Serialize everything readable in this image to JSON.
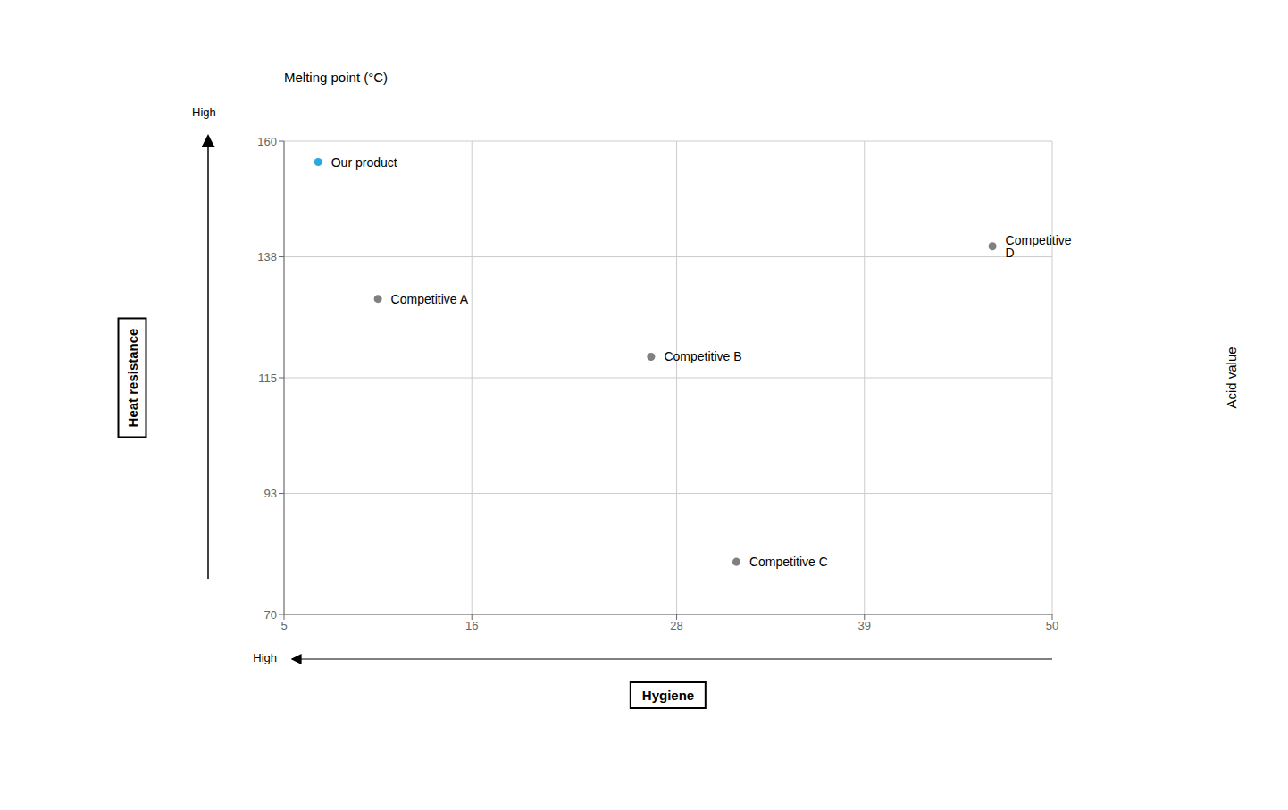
{
  "chart_data": {
    "type": "scatter",
    "x": [
      7.0,
      10.5,
      26.5,
      31.5,
      46.5
    ],
    "values": [
      156,
      130,
      119,
      80,
      140
    ],
    "labels": [
      "Our product",
      "Competitive A",
      "Competitive B",
      "Competitive C",
      "Competitive D"
    ],
    "colors": [
      "#29A9E1",
      "#808080",
      "#808080",
      "#808080",
      "#808080"
    ],
    "xlim": [
      5,
      50
    ],
    "ylim": [
      70,
      160
    ],
    "xticks": [
      5,
      16,
      28,
      39,
      50
    ],
    "yticks": [
      70,
      93,
      115,
      138,
      160
    ],
    "grid": true,
    "xlabel": "Hygiene",
    "ylabel": "Heat resistance",
    "ylabel_right": "Acid value",
    "annotations": [
      "Melting point (°C)",
      "High",
      "High"
    ]
  }
}
